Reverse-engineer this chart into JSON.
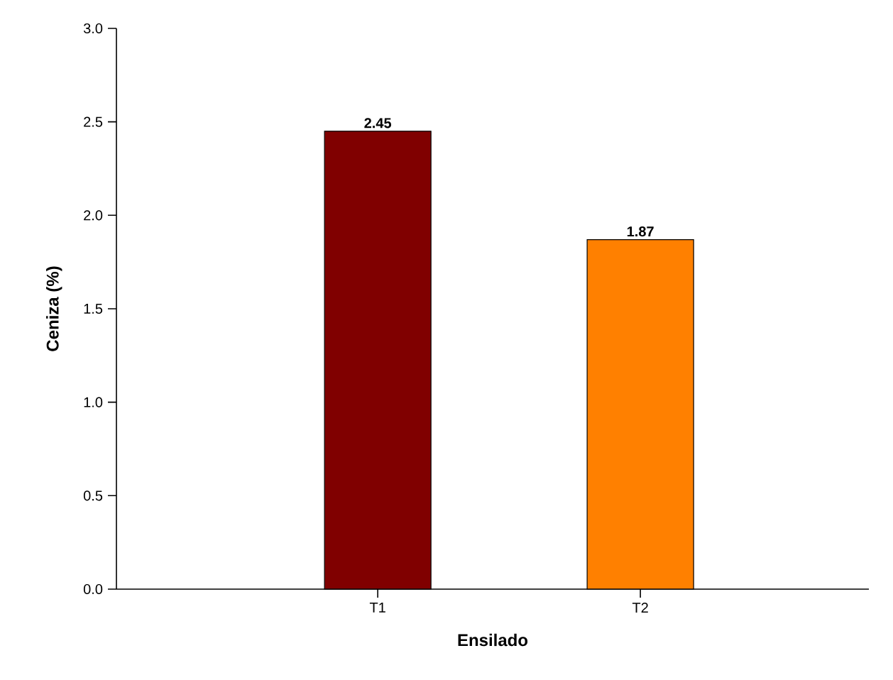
{
  "chart_data": {
    "type": "bar",
    "xlabel": "Ensilado",
    "ylabel": "Ceniza (%)",
    "categories": [
      "T1",
      "T2"
    ],
    "values": [
      2.45,
      1.87
    ],
    "colors": [
      "#800000",
      "#ff8000"
    ],
    "value_labels": [
      "2.45",
      "1.87"
    ],
    "ylim": [
      0,
      3
    ],
    "yticks": [
      {
        "value": 0,
        "label": "0.0"
      },
      {
        "value": 0.5,
        "label": "0.5"
      },
      {
        "value": 1,
        "label": "1.0"
      },
      {
        "value": 1.5,
        "label": "1.5"
      },
      {
        "value": 2,
        "label": "2.0"
      },
      {
        "value": 2.5,
        "label": "2.5"
      },
      {
        "value": 3,
        "label": "3.0"
      }
    ]
  }
}
